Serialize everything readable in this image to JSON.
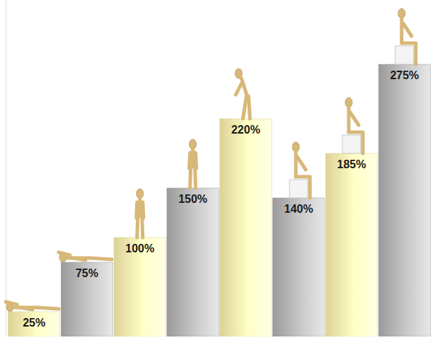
{
  "chart_data": {
    "type": "bar",
    "categories": [
      null,
      null,
      null,
      null,
      null,
      null,
      null,
      null
    ],
    "values": [
      25,
      75,
      100,
      150,
      220,
      140,
      185,
      275
    ],
    "value_labels": [
      "25%",
      "75%",
      "100%",
      "150%",
      "220%",
      "140%",
      "185%",
      "275%"
    ],
    "colors": [
      "#f2e6a6",
      "#a8a8a8",
      "#f2e6a6",
      "#a8a8a8",
      "#f2e6a6",
      "#a8a8a8",
      "#f2e6a6",
      "#a8a8a8"
    ],
    "ylim": [
      0,
      340
    ],
    "data_labels": true,
    "tick_labels": false
  }
}
